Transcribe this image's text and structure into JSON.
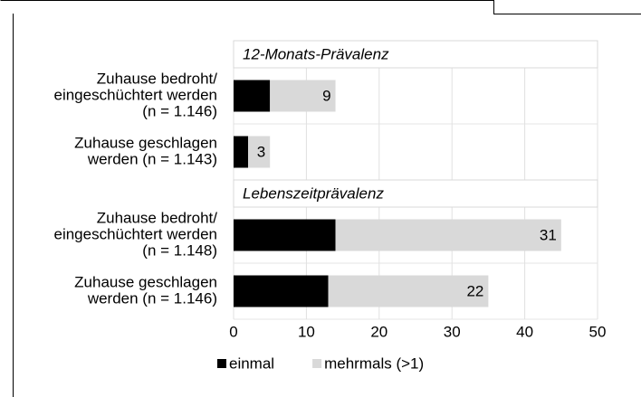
{
  "chart_data": {
    "type": "bar",
    "orientation": "horizontal",
    "stacked": true,
    "sections": [
      {
        "label": "12-Monats-Prävalenz"
      },
      {
        "label": "Lebenszeitprävalenz"
      }
    ],
    "categories": [
      [
        "Zuhause bedroht/",
        "eingeschüchtert werden",
        "(n = 1.146)"
      ],
      [
        "Zuhause geschlagen",
        "werden (n = 1.143)"
      ],
      [
        "Zuhause bedroht/",
        "eingeschüchtert werden",
        "(n = 1.148)"
      ],
      [
        "Zuhause geschlagen",
        "werden (n = 1.146)"
      ]
    ],
    "series": [
      {
        "name": "einmal",
        "color": "#000000",
        "label_color": "#ffffff",
        "values": [
          5,
          2,
          14,
          13
        ]
      },
      {
        "name": "mehrmals (>1)",
        "color": "#d9d9d9",
        "label_color": "#000000",
        "values": [
          9,
          3,
          31,
          22
        ]
      }
    ],
    "xlim": [
      0,
      50
    ],
    "xticks": [
      0,
      10,
      20,
      30,
      40,
      50
    ],
    "grid": true,
    "legend": "bottom"
  }
}
